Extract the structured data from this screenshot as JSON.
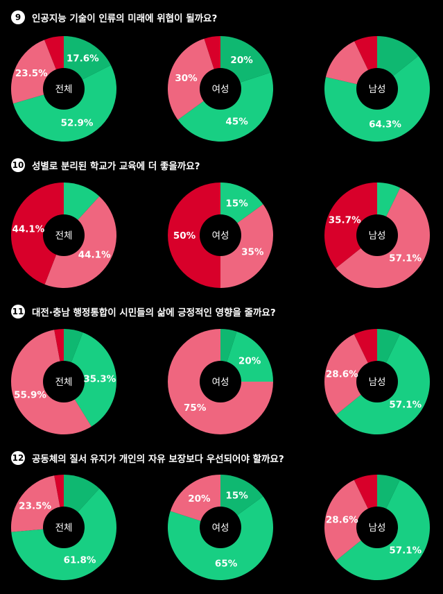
{
  "colors": {
    "dark_green": "#0fb871",
    "green": "#18cf83",
    "pink": "#ef667f",
    "red": "#d8002a",
    "hole": "#000000"
  },
  "questions": [
    {
      "number": "9",
      "text": "인공지능 기술이 인류의 미래에 위협이 될까요?"
    },
    {
      "number": "10",
      "text": "성별로 분리된 학교가 교육에 더 좋을까요?"
    },
    {
      "number": "11",
      "text": "대전·충남 행정통합이 시민들의 삶에 긍정적인 영향을 줄까요?"
    },
    {
      "number": "12",
      "text": "공동체의 질서 유지가 개인의 자유 보장보다 우선되어야 할까요?"
    }
  ],
  "chart_data": [
    {
      "type": "pie",
      "question": "9",
      "center_label": "전체",
      "slices": [
        {
          "value": 17.6,
          "color": "#0fb871",
          "label": "17.6%"
        },
        {
          "value": 52.9,
          "color": "#18cf83",
          "label": "52.9%"
        },
        {
          "value": 23.5,
          "color": "#ef667f",
          "label": "23.5%"
        },
        {
          "value": 6.0,
          "color": "#d8002a",
          "label": ""
        }
      ]
    },
    {
      "type": "pie",
      "question": "9",
      "center_label": "여성",
      "slices": [
        {
          "value": 20,
          "color": "#0fb871",
          "label": "20%"
        },
        {
          "value": 45,
          "color": "#18cf83",
          "label": "45%"
        },
        {
          "value": 30,
          "color": "#ef667f",
          "label": "30%"
        },
        {
          "value": 5,
          "color": "#d8002a",
          "label": ""
        }
      ]
    },
    {
      "type": "pie",
      "question": "9",
      "center_label": "남성",
      "slices": [
        {
          "value": 14.3,
          "color": "#0fb871",
          "label": ""
        },
        {
          "value": 64.3,
          "color": "#18cf83",
          "label": "64.3%"
        },
        {
          "value": 14.3,
          "color": "#ef667f",
          "label": ""
        },
        {
          "value": 7.1,
          "color": "#d8002a",
          "label": ""
        }
      ]
    },
    {
      "type": "pie",
      "question": "10",
      "center_label": "전체",
      "slices": [
        {
          "value": 11.8,
          "color": "#18cf83",
          "label": ""
        },
        {
          "value": 44.1,
          "color": "#ef667f",
          "label": "44.1%"
        },
        {
          "value": 44.1,
          "color": "#d8002a",
          "label": "44.1%"
        }
      ]
    },
    {
      "type": "pie",
      "question": "10",
      "center_label": "여성",
      "slices": [
        {
          "value": 15,
          "color": "#18cf83",
          "label": "15%"
        },
        {
          "value": 35,
          "color": "#ef667f",
          "label": "35%"
        },
        {
          "value": 50,
          "color": "#d8002a",
          "label": "50%"
        }
      ]
    },
    {
      "type": "pie",
      "question": "10",
      "center_label": "남성",
      "slices": [
        {
          "value": 7.2,
          "color": "#18cf83",
          "label": ""
        },
        {
          "value": 57.1,
          "color": "#ef667f",
          "label": "57.1%"
        },
        {
          "value": 35.7,
          "color": "#d8002a",
          "label": "35.7%"
        }
      ]
    },
    {
      "type": "pie",
      "question": "11",
      "center_label": "전체",
      "slices": [
        {
          "value": 5.9,
          "color": "#0fb871",
          "label": ""
        },
        {
          "value": 35.3,
          "color": "#18cf83",
          "label": "35.3%"
        },
        {
          "value": 55.9,
          "color": "#ef667f",
          "label": "55.9%"
        },
        {
          "value": 2.9,
          "color": "#d8002a",
          "label": ""
        }
      ]
    },
    {
      "type": "pie",
      "question": "11",
      "center_label": "여성",
      "slices": [
        {
          "value": 5,
          "color": "#0fb871",
          "label": ""
        },
        {
          "value": 20,
          "color": "#18cf83",
          "label": "20%"
        },
        {
          "value": 75,
          "color": "#ef667f",
          "label": "75%"
        }
      ]
    },
    {
      "type": "pie",
      "question": "11",
      "center_label": "남성",
      "slices": [
        {
          "value": 7.1,
          "color": "#0fb871",
          "label": ""
        },
        {
          "value": 57.1,
          "color": "#18cf83",
          "label": "57.1%"
        },
        {
          "value": 28.6,
          "color": "#ef667f",
          "label": "28.6%"
        },
        {
          "value": 7.2,
          "color": "#d8002a",
          "label": ""
        }
      ]
    },
    {
      "type": "pie",
      "question": "12",
      "center_label": "전체",
      "slices": [
        {
          "value": 11.8,
          "color": "#0fb871",
          "label": ""
        },
        {
          "value": 61.8,
          "color": "#18cf83",
          "label": "61.8%"
        },
        {
          "value": 23.5,
          "color": "#ef667f",
          "label": "23.5%"
        },
        {
          "value": 2.9,
          "color": "#d8002a",
          "label": ""
        }
      ]
    },
    {
      "type": "pie",
      "question": "12",
      "center_label": "여성",
      "slices": [
        {
          "value": 15,
          "color": "#0fb871",
          "label": "15%"
        },
        {
          "value": 65,
          "color": "#18cf83",
          "label": "65%"
        },
        {
          "value": 20,
          "color": "#ef667f",
          "label": "20%"
        }
      ]
    },
    {
      "type": "pie",
      "question": "12",
      "center_label": "남성",
      "slices": [
        {
          "value": 7.1,
          "color": "#0fb871",
          "label": ""
        },
        {
          "value": 57.1,
          "color": "#18cf83",
          "label": "57.1%"
        },
        {
          "value": 28.6,
          "color": "#ef667f",
          "label": "28.6%"
        },
        {
          "value": 7.2,
          "color": "#d8002a",
          "label": ""
        }
      ]
    }
  ]
}
